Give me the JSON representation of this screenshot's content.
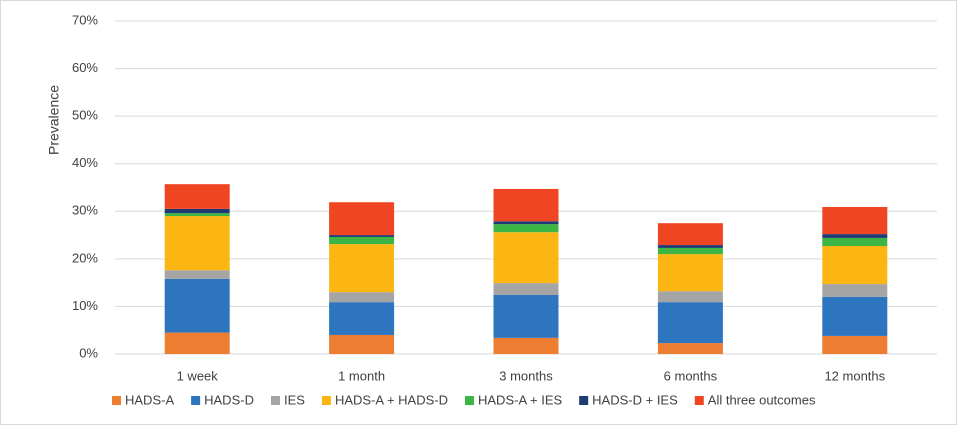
{
  "chart_data": {
    "type": "stacked_bar",
    "y_label": "Prevalence",
    "categories": [
      "1 week",
      "1 month",
      "3 months",
      "6 months",
      "12 months"
    ],
    "series": [
      {
        "name": "HADS-A",
        "color": "#ed7d31",
        "values": [
          4.5,
          4.0,
          3.4,
          2.3,
          3.8
        ]
      },
      {
        "name": "HADS-D",
        "color": "#2e75c0",
        "values": [
          11.3,
          6.9,
          9.0,
          8.6,
          8.2
        ]
      },
      {
        "name": "IES",
        "color": "#a5a5a5",
        "values": [
          1.8,
          2.1,
          2.5,
          2.3,
          2.7
        ]
      },
      {
        "name": "HADS-A + HADS-D",
        "color": "#fbb614",
        "values": [
          11.4,
          10.1,
          10.7,
          7.8,
          8.0
        ]
      },
      {
        "name": "HADS-A + IES",
        "color": "#3cb544",
        "values": [
          0.6,
          1.5,
          1.7,
          1.3,
          1.7
        ]
      },
      {
        "name": "HADS-D + IES",
        "color": "#1f3b73",
        "values": [
          0.9,
          0.4,
          0.6,
          0.6,
          0.8
        ]
      },
      {
        "name": "All three outcomes",
        "color": "#ef4523",
        "values": [
          5.2,
          6.9,
          6.8,
          4.6,
          5.7
        ]
      }
    ],
    "ylim": [
      0,
      70
    ],
    "yticks": [
      {
        "value": 0,
        "label": "0%"
      },
      {
        "value": 10,
        "label": "10%"
      },
      {
        "value": 20,
        "label": "20%"
      },
      {
        "value": 30,
        "label": "30%"
      },
      {
        "value": 40,
        "label": "40%"
      },
      {
        "value": 50,
        "label": "50%"
      },
      {
        "value": 60,
        "label": "60%"
      },
      {
        "value": 70,
        "label": "70%"
      }
    ],
    "grid": true,
    "legend": "bottom"
  }
}
